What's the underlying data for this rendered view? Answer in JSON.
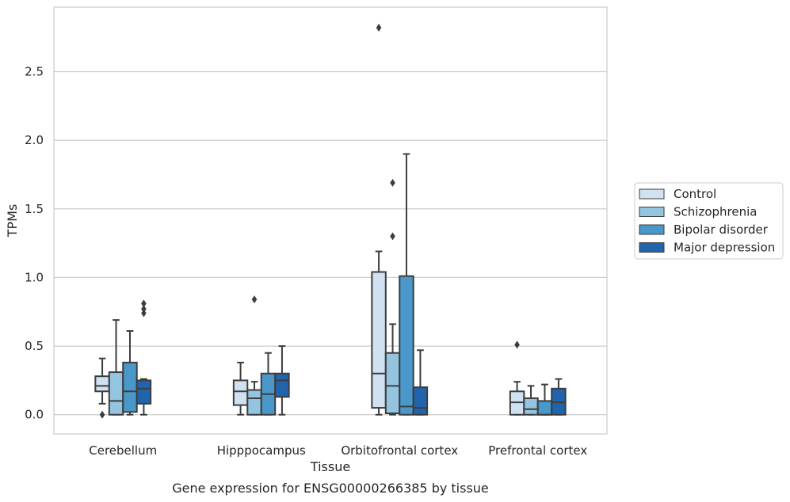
{
  "chart_data": {
    "type": "boxplot",
    "title": "Gene expression for ENSG00000266385 by tissue",
    "xlabel": "Tissue",
    "ylabel": "TPMs",
    "ylim": [
      -0.14,
      2.97
    ],
    "yticks": [
      0.0,
      0.5,
      1.0,
      1.5,
      2.0,
      2.5
    ],
    "ytick_labels": [
      "0.0",
      "0.5",
      "1.0",
      "1.5",
      "2.0",
      "2.5"
    ],
    "grid": "horizontal",
    "legend_position": "right",
    "categories": [
      "Cerebellum",
      "Hipppocampus",
      "Orbitofrontal cortex",
      "Prefrontal cortex"
    ],
    "series": [
      {
        "name": "Control",
        "color": "#d0e1f2",
        "boxes": [
          {
            "whislo": 0.08,
            "q1": 0.17,
            "med": 0.21,
            "q3": 0.28,
            "whishi": 0.41,
            "fliers": [
              0.0
            ]
          },
          {
            "whislo": 0.0,
            "q1": 0.07,
            "med": 0.17,
            "q3": 0.25,
            "whishi": 0.38,
            "fliers": []
          },
          {
            "whislo": 0.0,
            "q1": 0.05,
            "med": 0.3,
            "q3": 1.04,
            "whishi": 1.19,
            "fliers": [
              2.82
            ]
          },
          {
            "whislo": 0.0,
            "q1": 0.0,
            "med": 0.09,
            "q3": 0.17,
            "whishi": 0.24,
            "fliers": [
              0.51
            ]
          }
        ]
      },
      {
        "name": "Schizophrenia",
        "color": "#94c4df",
        "boxes": [
          {
            "whislo": 0.0,
            "q1": 0.0,
            "med": 0.1,
            "q3": 0.31,
            "whishi": 0.69,
            "fliers": []
          },
          {
            "whislo": 0.0,
            "q1": 0.0,
            "med": 0.12,
            "q3": 0.18,
            "whishi": 0.24,
            "fliers": [
              0.84
            ]
          },
          {
            "whislo": 0.0,
            "q1": 0.01,
            "med": 0.21,
            "q3": 0.45,
            "whishi": 0.66,
            "fliers": [
              1.3,
              1.69
            ]
          },
          {
            "whislo": 0.0,
            "q1": 0.0,
            "med": 0.04,
            "q3": 0.12,
            "whishi": 0.21,
            "fliers": []
          }
        ]
      },
      {
        "name": "Bipolar disorder",
        "color": "#4a98c9",
        "boxes": [
          {
            "whislo": 0.0,
            "q1": 0.02,
            "med": 0.17,
            "q3": 0.38,
            "whishi": 0.61,
            "fliers": []
          },
          {
            "whislo": 0.0,
            "q1": 0.0,
            "med": 0.15,
            "q3": 0.3,
            "whishi": 0.45,
            "fliers": []
          },
          {
            "whislo": 0.0,
            "q1": 0.0,
            "med": 0.06,
            "q3": 1.01,
            "whishi": 1.9,
            "fliers": []
          },
          {
            "whislo": 0.0,
            "q1": 0.0,
            "med": 0.0,
            "q3": 0.1,
            "whishi": 0.22,
            "fliers": []
          }
        ]
      },
      {
        "name": "Major depression",
        "color": "#2164ab",
        "boxes": [
          {
            "whislo": 0.0,
            "q1": 0.08,
            "med": 0.19,
            "q3": 0.25,
            "whishi": 0.26,
            "fliers": [
              0.74,
              0.77,
              0.81
            ]
          },
          {
            "whislo": 0.0,
            "q1": 0.13,
            "med": 0.25,
            "q3": 0.3,
            "whishi": 0.5,
            "fliers": []
          },
          {
            "whislo": 0.0,
            "q1": 0.0,
            "med": 0.05,
            "q3": 0.2,
            "whishi": 0.47,
            "fliers": []
          },
          {
            "whislo": 0.0,
            "q1": 0.0,
            "med": 0.09,
            "q3": 0.19,
            "whishi": 0.26,
            "fliers": []
          }
        ]
      }
    ]
  }
}
